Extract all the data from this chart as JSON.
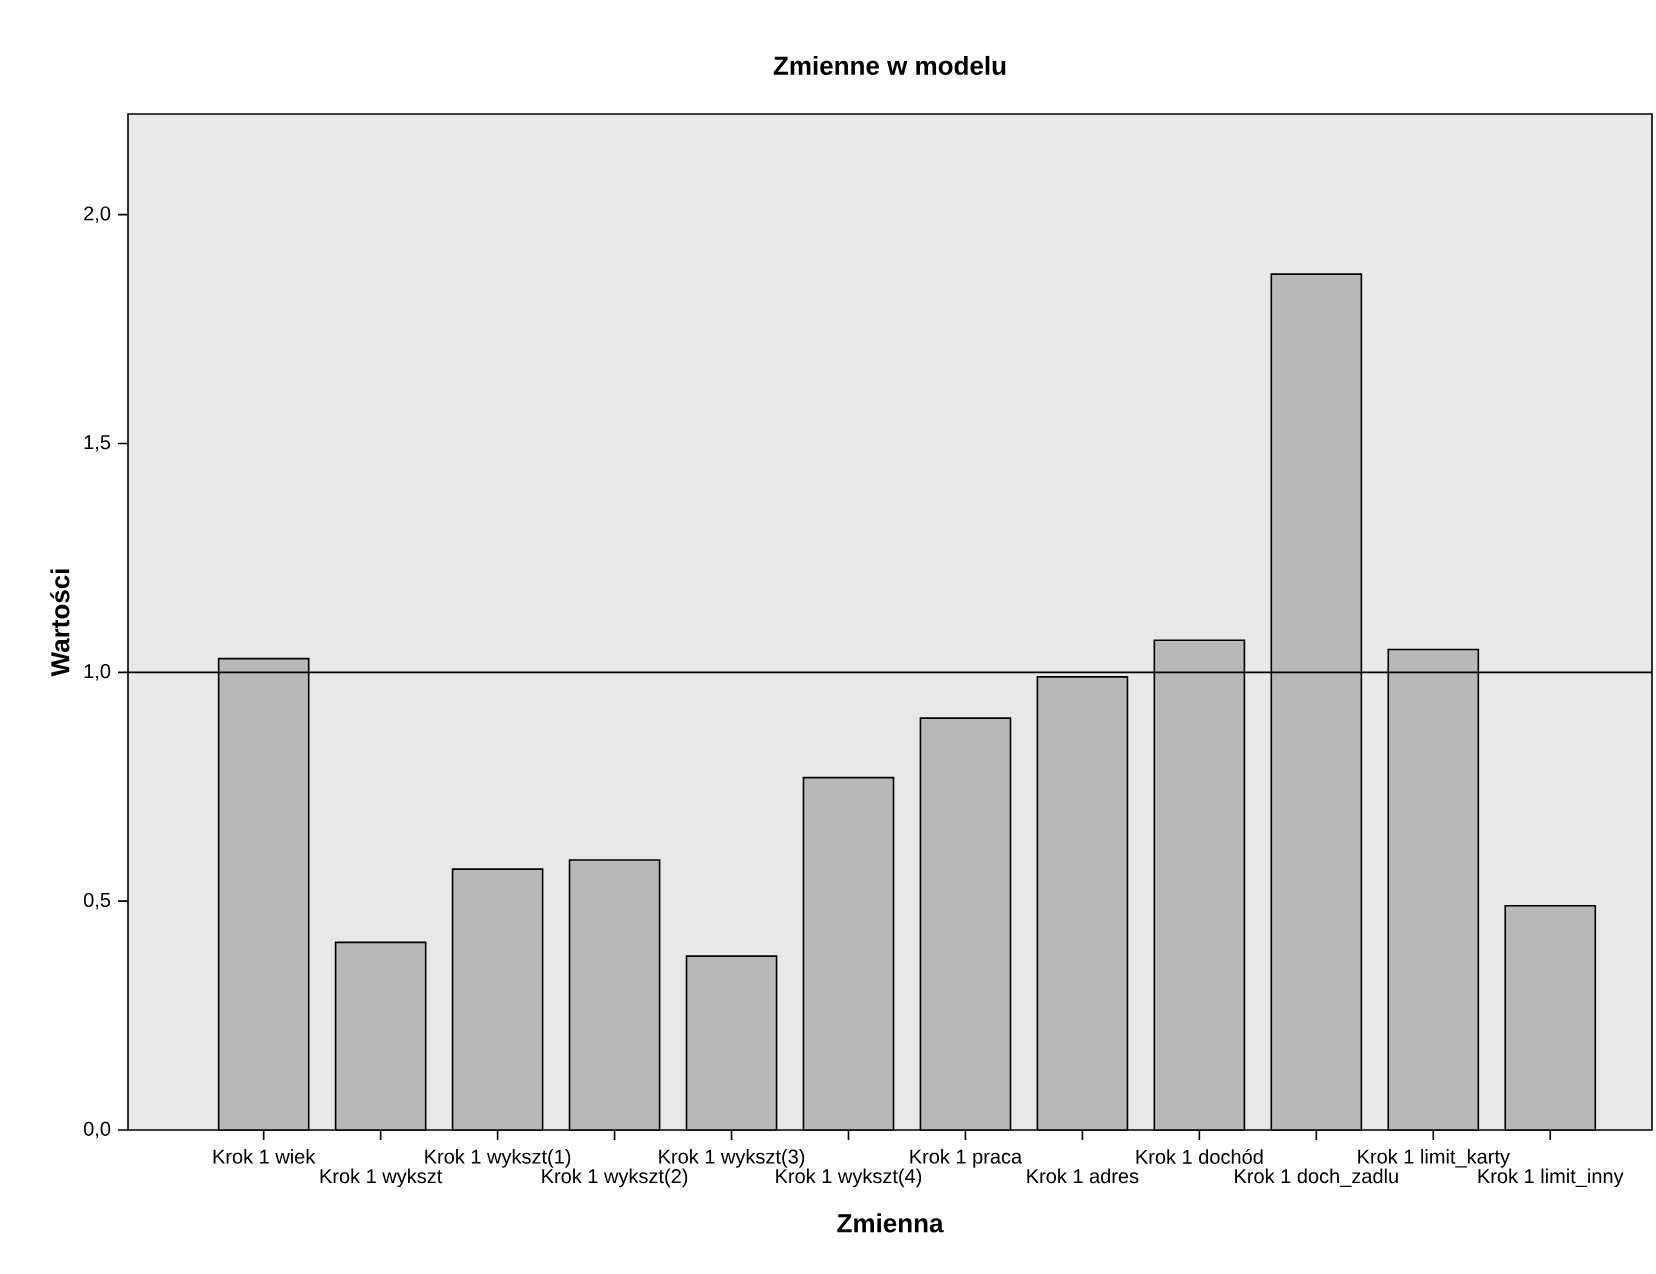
{
  "chart_data": {
    "type": "bar",
    "title": "Zmienne w modelu",
    "xlabel": "Zmienna",
    "ylabel": "Wartości",
    "categories": [
      "Krok 1 wiek",
      "Krok 1 wykszt",
      "Krok 1 wykszt(1)",
      "Krok 1 wykszt(2)",
      "Krok 1 wykszt(3)",
      "Krok 1 wykszt(4)",
      "Krok 1 praca",
      "Krok 1 adres",
      "Krok 1 dochód",
      "Krok 1 doch_zadlu",
      "Krok 1 limit_karty",
      "Krok 1 limit_inny"
    ],
    "values": [
      1.03,
      0.41,
      0.57,
      0.59,
      0.38,
      0.77,
      0.9,
      0.99,
      1.07,
      1.87,
      1.05,
      0.49
    ],
    "color": "#b8b8b8",
    "ylim": [
      0,
      2.22
    ],
    "yticks": [
      {
        "value": 0,
        "label": "0,0"
      },
      {
        "value": 0.5,
        "label": "0,5"
      },
      {
        "value": 1,
        "label": "1,0"
      },
      {
        "value": 1.5,
        "label": "1,5"
      },
      {
        "value": 2,
        "label": "2,0"
      }
    ],
    "ref_lines": [
      {
        "axis": "y",
        "value": 1,
        "color": "#000000"
      }
    ],
    "grid": false,
    "legend": false
  }
}
